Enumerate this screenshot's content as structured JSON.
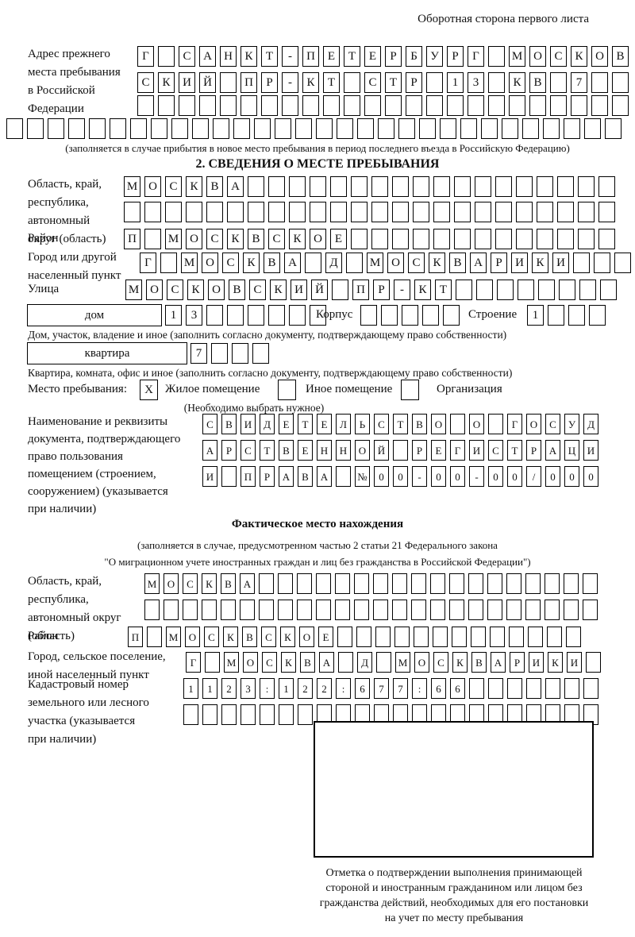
{
  "page": {
    "header_note": "Оборотная сторона первого листа"
  },
  "prev_address": {
    "label": "Адрес прежнего\nместа пребывания\nв Российской\nФедерации",
    "rows": [
      {
        "chars": "Г САНКТ-ПЕТЕРБУРГ МОСКОВ",
        "len": 24
      },
      {
        "chars": "СКИЙ ПР-КТ СТР 13 КВ 7",
        "len": 24
      },
      {
        "chars": "",
        "len": 24
      }
    ],
    "overflow_row": {
      "chars": "",
      "len": 30
    },
    "caption": "(заполняется в случае прибытия в новое место пребывания в период последнего въезда в Российскую Федерацию)"
  },
  "section2": {
    "title": "2. СВЕДЕНИЯ О МЕСТЕ ПРЕБЫВАНИЯ",
    "region": {
      "label": "Область, край,\nреспублика,\nавтономный\nокруг (область)",
      "rows": [
        {
          "chars": "МОСКВА",
          "len": 24
        },
        {
          "chars": "",
          "len": 24
        }
      ]
    },
    "district": {
      "label": "Район",
      "row": {
        "chars": "П МОСКВСКОЕ",
        "len": 24
      }
    },
    "city": {
      "label": "Город или другой\nнаселенный пункт",
      "row": {
        "chars": "Г МОСКВА Д МОСКВАРИКИ",
        "len": 24
      }
    },
    "street": {
      "label": "Улица",
      "row": {
        "chars": "МОСКОВСКИЙ ПР-КТ",
        "len": 24
      }
    },
    "house": {
      "box_label": "дом",
      "cells": {
        "chars": "13",
        "len": 8
      },
      "korpus_label": "Корпус",
      "korpus_cells": {
        "chars": "",
        "len": 5
      },
      "stroenie_label": "Строение",
      "stroenie_cells": {
        "chars": "1",
        "len": 4
      },
      "caption": "Дом, участок, владение и иное (заполнить согласно документу, подтверждающему право собственности)"
    },
    "apartment": {
      "box_label": "квартира",
      "cells": {
        "chars": "7",
        "len": 4
      },
      "caption": "Квартира, комната, офис и иное (заполнить согласно документу, подтверждающему право собственности)"
    },
    "place_type": {
      "label": "Место пребывания:",
      "options": [
        {
          "label": "Жилое помещение",
          "checked": "X"
        },
        {
          "label": "Иное помещение",
          "checked": ""
        },
        {
          "label": "Организация",
          "checked": ""
        }
      ],
      "hint": "(Необходимо выбрать нужное)"
    },
    "document": {
      "label": "Наименование и реквизиты\nдокумента, подтверждающего\nправо пользования\nпомещением (строением,\nсооружением) (указывается\nпри наличии)",
      "rows": [
        {
          "chars": "СВИДЕТЕЛЬСТВО О ГОСУД",
          "len": 21
        },
        {
          "chars": "АРСТВЕННОЙ РЕГИСТРАЦИ",
          "len": 21
        },
        {
          "chars": "И ПРАВА №00-00-00/000",
          "len": 21
        }
      ]
    }
  },
  "actual_location": {
    "title": "Фактическое место нахождения",
    "caption": "(заполняется в случае, предусмотренном частью 2 статьи 21 Федерального закона\n\"О миграционном учете иностранных граждан и лиц без гражданства в Российской Федерации\")",
    "region": {
      "label": "Область, край,\nреспублика,\nавтономный округ\n(область)",
      "rows": [
        {
          "chars": "МОСКВА",
          "len": 24
        },
        {
          "chars": "",
          "len": 24
        }
      ]
    },
    "district": {
      "label": "Район",
      "row": {
        "chars": "П МОСКВСКОЕ",
        "len": 24
      }
    },
    "city": {
      "label": "Город, сельское поселение,\nиной населенный пункт",
      "row": {
        "chars": "Г МОСКВА Д МОСКВАРИКИ",
        "len": 22
      }
    },
    "cadastral": {
      "label": "Кадастровый номер\nземельного или лесного\nучастка (указывается\nпри наличии)",
      "rows": [
        {
          "chars": "1123:122:677:66",
          "len": 22
        },
        {
          "chars": "",
          "len": 22
        }
      ]
    },
    "stamp": {
      "caption": "Отметка о подтверждении выполнения принимающей\nстороной и иностранным гражданином или лицом без\nгражданства действий, необходимых для его постановки\nна учет по месту пребывания"
    }
  }
}
